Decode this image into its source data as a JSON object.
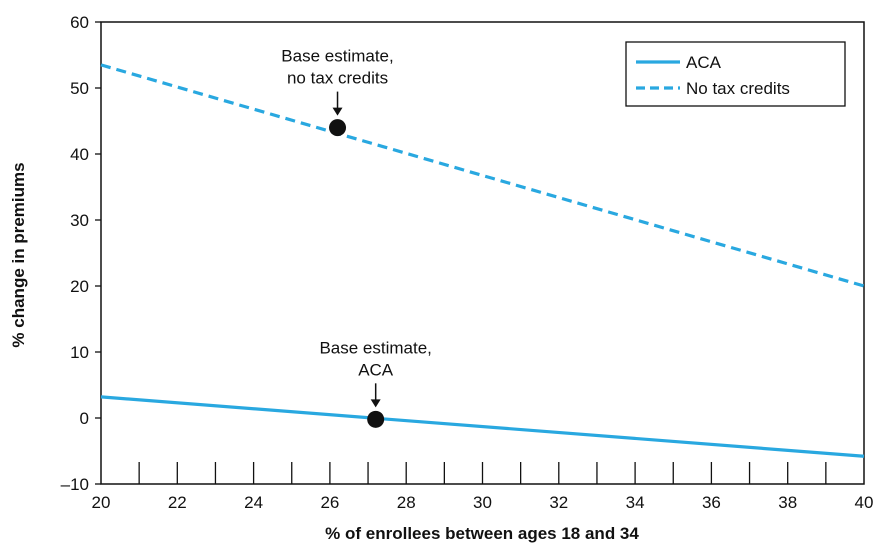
{
  "chart_data": {
    "type": "line",
    "title": "",
    "xlabel": "% of enrollees between ages 18 and 34",
    "ylabel": "% change in premiums",
    "xlim": [
      20,
      40
    ],
    "ylim": [
      -10,
      60
    ],
    "x_ticks": [
      20,
      22,
      24,
      26,
      28,
      30,
      32,
      34,
      36,
      38,
      40
    ],
    "x_tick_labels": [
      "20",
      "22",
      "24",
      "26",
      "28",
      "30",
      "32",
      "34",
      "36",
      "38",
      "40"
    ],
    "y_ticks": [
      -10,
      0,
      10,
      20,
      30,
      40,
      50,
      60
    ],
    "y_tick_labels": [
      "–10",
      "0",
      "10",
      "20",
      "30",
      "40",
      "50",
      "60"
    ],
    "grid": false,
    "legend_position": "top-right",
    "series": [
      {
        "name": "ACA",
        "style": "solid",
        "color": "#29a8e0",
        "x": [
          20,
          40
        ],
        "y": [
          3.2,
          -5.8
        ]
      },
      {
        "name": "No tax credits",
        "style": "dashed",
        "color": "#29a8e0",
        "x": [
          20,
          40
        ],
        "y": [
          53.5,
          20.0
        ]
      }
    ],
    "points": [
      {
        "x": 26.2,
        "y": 44.0,
        "label_lines": [
          "Base estimate,",
          "no tax credits"
        ]
      },
      {
        "x": 27.2,
        "y": -0.2,
        "label_lines": [
          "Base estimate,",
          "ACA"
        ]
      }
    ]
  }
}
